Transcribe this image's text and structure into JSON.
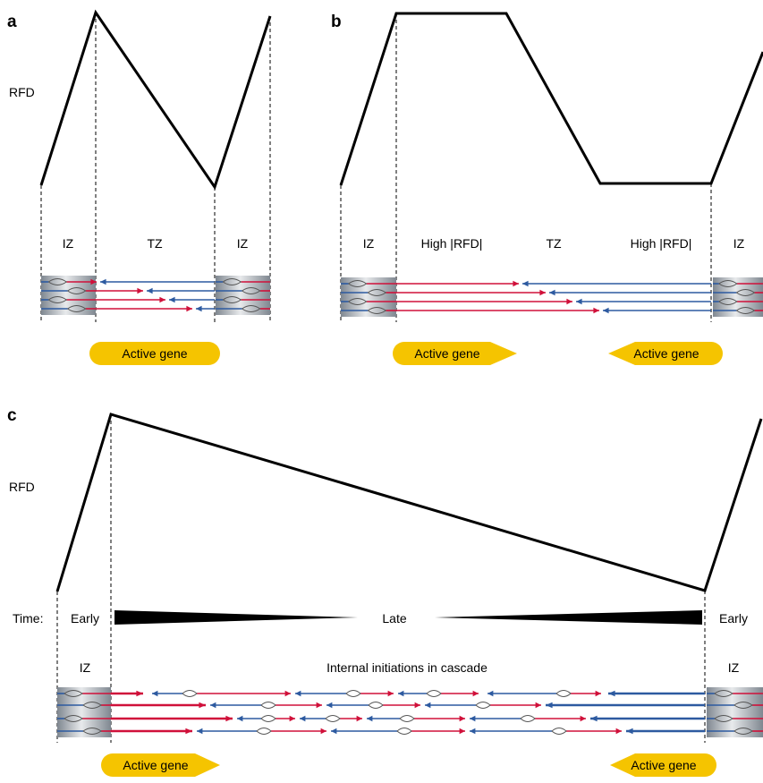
{
  "panels": {
    "a": {
      "letter": "a",
      "ylabel": "RFD",
      "zones": [
        "IZ",
        "TZ",
        "IZ"
      ],
      "gene": "Active gene"
    },
    "b": {
      "letter": "b",
      "zones": [
        "IZ",
        "High |RFD|",
        "TZ",
        "High |RFD|",
        "IZ"
      ],
      "genes": [
        "Active gene",
        "Active gene"
      ]
    },
    "c": {
      "letter": "c",
      "ylabel": "RFD",
      "time_label": "Time:",
      "early_left": "Early",
      "late": "Late",
      "early_right": "Early",
      "zones": [
        "IZ",
        "Internal initiations in cascade",
        "IZ"
      ],
      "genes": [
        "Active gene",
        "Active gene"
      ]
    }
  },
  "colors": {
    "red": "#d0103a",
    "blue": "#2d5aa0",
    "gene": "#f5c400"
  }
}
